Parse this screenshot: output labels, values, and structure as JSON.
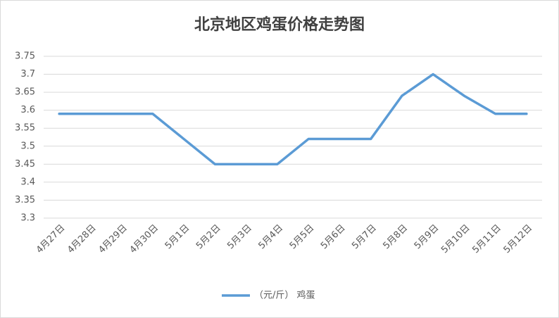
{
  "chart_data": {
    "type": "line",
    "title": "北京地区鸡蛋价格走势图",
    "categories": [
      "4月27日",
      "4月28日",
      "4月29日",
      "4月30日",
      "5月1日",
      "5月2日",
      "5月3日",
      "5月4日",
      "5月5日",
      "5月6日",
      "5月7日",
      "5月8日",
      "5月9日",
      "5月10日",
      "5月11日",
      "5月12日"
    ],
    "series": [
      {
        "name": "（元/斤） 鸡蛋",
        "color": "#5b9bd5",
        "values": [
          3.59,
          3.59,
          3.59,
          3.59,
          3.52,
          3.45,
          3.45,
          3.45,
          3.52,
          3.52,
          3.52,
          3.64,
          3.7,
          3.64,
          3.59,
          3.59
        ]
      }
    ],
    "ylim": [
      3.3,
      3.75
    ],
    "yticks": [
      3.3,
      3.35,
      3.4,
      3.45,
      3.5,
      3.55,
      3.6,
      3.65,
      3.7,
      3.75
    ],
    "grid": true,
    "legend": "bottom"
  }
}
